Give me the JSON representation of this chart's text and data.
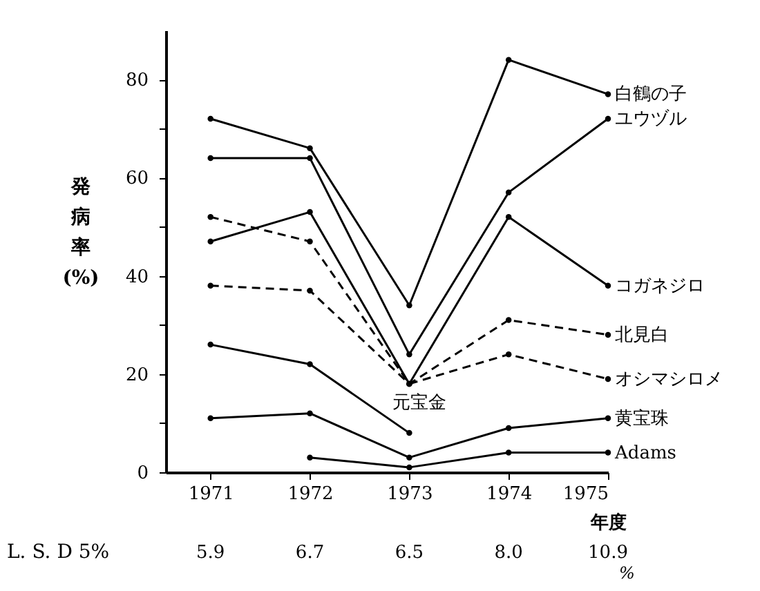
{
  "chart_data": {
    "type": "line",
    "xlabel": "年度",
    "ylabel": "発病率 (%)",
    "x": [
      1971,
      1972,
      1973,
      1974,
      1975
    ],
    "xlim": [
      1970.55,
      1975
    ],
    "xticks": [
      1971,
      1972,
      1973,
      1974,
      1975
    ],
    "ylim": [
      0,
      90
    ],
    "yticks": [
      0,
      {
        "value": 10,
        "label": null
      },
      20,
      {
        "value": 30,
        "label": null
      },
      40,
      {
        "value": 50,
        "label": null
      },
      60,
      {
        "value": 70,
        "label": null
      },
      80
    ],
    "grid": false,
    "legend": false,
    "marker": "circle",
    "series": [
      {
        "name": "白鶴の子",
        "color": "#000000",
        "line_style": "solid",
        "values": [
          72,
          66,
          34,
          84,
          77
        ]
      },
      {
        "name": "ユウヅル",
        "color": "#000000",
        "line_style": "solid",
        "values": [
          64,
          64,
          24,
          57,
          72
        ]
      },
      {
        "name": "コガネジロ",
        "color": "#000000",
        "line_style": "solid",
        "values": [
          47,
          53,
          18,
          52,
          38
        ]
      },
      {
        "name": "北見白",
        "color": "#000000",
        "line_style": "dashed",
        "values": [
          38,
          37,
          18,
          31,
          28
        ]
      },
      {
        "name": "オシマシロメ",
        "color": "#000000",
        "line_style": "dashed",
        "values": [
          52,
          47,
          18,
          24,
          19
        ]
      },
      {
        "name": "元宝金",
        "color": "#000000",
        "line_style": "solid",
        "values": [
          26,
          22,
          8,
          null,
          null
        ]
      },
      {
        "name": "黄宝珠",
        "color": "#000000",
        "line_style": "solid",
        "values": [
          11,
          12,
          3,
          9,
          11
        ]
      },
      {
        "name": "Adams",
        "color": "#000000",
        "line_style": "solid",
        "values": [
          null,
          3,
          1,
          4,
          4
        ]
      }
    ],
    "annotations": [
      "L. S. D 5%",
      "5.9",
      "6.7",
      "6.5",
      "8.0",
      "10.9",
      "%"
    ]
  }
}
